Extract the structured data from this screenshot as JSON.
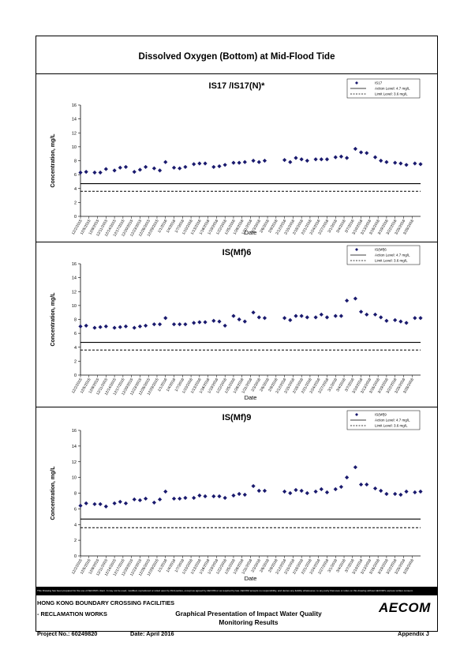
{
  "main_title": "Dissolved Oxygen (Bottom) at Mid-Flood Tide",
  "legend": {
    "action": "Action Level: 4.7 mg/L",
    "limit": "Limit Level: 3.6 mg/L"
  },
  "footer": {
    "disclaimer": "This Drawing has been prepared for the use of AECOM's client. It may not be used, modified, reproduced or relied upon by third parties, except as agreed by AECOM or as required by law. AECOM accepts no responsibility, and denies any liability whatsoever, to any party that uses or relies on this drawing without AECOM's express written consent.",
    "project_line1": "HONG KONG BOUNDARY CROSSING FACILITIES",
    "project_line2": "- RECLAMATION WORKS",
    "title_line1": "Graphical Presentation of Impact Water Quality",
    "title_line2": "Monitoring Results",
    "project_no": "Project No.: 60249820",
    "date": "Date: April 2016",
    "appendix": "Appendix J",
    "logo": "AECOM"
  },
  "colors": {
    "marker": "#1a1a6e",
    "line": "#000000"
  },
  "chart_data": [
    {
      "type": "scatter",
      "title": "IS17 /IS17(N)*",
      "series_name": "IS17",
      "xlabel": "Date",
      "ylabel": "Concentration, mg/L",
      "ylim": [
        0,
        16
      ],
      "yticks": [
        0,
        2,
        4,
        6,
        8,
        10,
        12,
        14,
        16
      ],
      "xlim": [
        "12/2/2015",
        "3/31/2016"
      ],
      "xticks": [
        "12/2/2015",
        "12/5/2015",
        "12/8/2015",
        "12/11/2015",
        "12/14/2015",
        "12/17/2015",
        "12/20/2015",
        "12/23/2015",
        "12/26/2015",
        "12/29/2015",
        "1/1/2016",
        "1/4/2016",
        "1/7/2016",
        "1/10/2016",
        "1/13/2016",
        "1/16/2016",
        "1/19/2016",
        "1/22/2016",
        "1/25/2016",
        "1/28/2016",
        "1/31/2016",
        "2/3/2016",
        "2/6/2016",
        "2/9/2016",
        "2/12/2016",
        "2/15/2016",
        "2/18/2016",
        "2/21/2016",
        "2/24/2016",
        "2/27/2016",
        "3/1/2016",
        "3/4/2016",
        "3/7/2016",
        "3/10/2016",
        "3/13/2016",
        "3/16/2016",
        "3/19/2016",
        "3/22/2016",
        "3/25/2016",
        "3/28/2016"
      ],
      "legend": "top-right",
      "action_level": 4.7,
      "limit_level": 3.6,
      "points": [
        [
          "12/2/2015",
          6.3
        ],
        [
          "12/4/2015",
          6.4
        ],
        [
          "12/7/2015",
          6.3
        ],
        [
          "12/9/2015",
          6.3
        ],
        [
          "12/11/2015",
          6.8
        ],
        [
          "12/14/2015",
          6.6
        ],
        [
          "12/16/2015",
          7.0
        ],
        [
          "12/18/2015",
          7.1
        ],
        [
          "12/21/2015",
          6.4
        ],
        [
          "12/23/2015",
          6.7
        ],
        [
          "12/25/2015",
          7.1
        ],
        [
          "12/28/2015",
          6.9
        ],
        [
          "12/30/2015",
          6.6
        ],
        [
          "1/1/2016",
          7.8
        ],
        [
          "1/4/2016",
          7.0
        ],
        [
          "1/6/2016",
          6.9
        ],
        [
          "1/8/2016",
          7.1
        ],
        [
          "1/11/2016",
          7.5
        ],
        [
          "1/13/2016",
          7.6
        ],
        [
          "1/15/2016",
          7.6
        ],
        [
          "1/18/2016",
          7.1
        ],
        [
          "1/20/2016",
          7.2
        ],
        [
          "1/22/2016",
          7.4
        ],
        [
          "1/25/2016",
          7.7
        ],
        [
          "1/27/2016",
          7.7
        ],
        [
          "1/29/2016",
          7.8
        ],
        [
          "2/1/2016",
          8.0
        ],
        [
          "2/3/2016",
          7.8
        ],
        [
          "2/5/2016",
          8.0
        ],
        [
          "2/12/2016",
          8.1
        ],
        [
          "2/14/2016",
          7.8
        ],
        [
          "2/16/2016",
          8.4
        ],
        [
          "2/18/2016",
          8.2
        ],
        [
          "2/20/2016",
          8.0
        ],
        [
          "2/23/2016",
          8.2
        ],
        [
          "2/25/2016",
          8.2
        ],
        [
          "2/27/2016",
          8.2
        ],
        [
          "3/1/2016",
          8.5
        ],
        [
          "3/3/2016",
          8.6
        ],
        [
          "3/5/2016",
          8.4
        ],
        [
          "3/8/2016",
          9.7
        ],
        [
          "3/10/2016",
          9.2
        ],
        [
          "3/12/2016",
          9.1
        ],
        [
          "3/15/2016",
          8.5
        ],
        [
          "3/17/2016",
          8.0
        ],
        [
          "3/19/2016",
          7.8
        ],
        [
          "3/22/2016",
          7.7
        ],
        [
          "3/24/2016",
          7.6
        ],
        [
          "3/26/2016",
          7.4
        ],
        [
          "3/29/2016",
          7.6
        ],
        [
          "3/31/2016",
          7.5
        ]
      ]
    },
    {
      "type": "scatter",
      "title": "IS(Mf)6",
      "series_name": "IS(Mf)6",
      "xlabel": "Date",
      "ylabel": "Concentration, mg/L",
      "ylim": [
        0,
        16
      ],
      "yticks": [
        0,
        2,
        4,
        6,
        8,
        10,
        12,
        14,
        16
      ],
      "xlim": [
        "12/2/2015",
        "3/31/2016"
      ],
      "xticks": [
        "12/2/2015",
        "12/5/2015",
        "12/8/2015",
        "12/11/2015",
        "12/14/2015",
        "12/17/2015",
        "12/20/2015",
        "12/23/2015",
        "12/26/2015",
        "12/29/2015",
        "1/1/2016",
        "1/4/2016",
        "1/7/2016",
        "1/10/2016",
        "1/13/2016",
        "1/16/2016",
        "1/19/2016",
        "1/22/2016",
        "1/25/2016",
        "1/28/2016",
        "1/31/2016",
        "2/3/2016",
        "2/6/2016",
        "2/9/2016",
        "2/12/2016",
        "2/15/2016",
        "2/18/2016",
        "2/21/2016",
        "2/24/2016",
        "2/27/2016",
        "3/1/2016",
        "3/4/2016",
        "3/7/2016",
        "3/10/2016",
        "3/13/2016",
        "3/16/2016",
        "3/19/2016",
        "3/22/2016",
        "3/25/2016",
        "3/28/2016"
      ],
      "legend": "top-right",
      "action_level": 4.7,
      "limit_level": 3.6,
      "points": [
        [
          "12/2/2015",
          7.0
        ],
        [
          "12/4/2015",
          7.1
        ],
        [
          "12/7/2015",
          6.8
        ],
        [
          "12/9/2015",
          6.9
        ],
        [
          "12/11/2015",
          7.0
        ],
        [
          "12/14/2015",
          6.8
        ],
        [
          "12/16/2015",
          6.9
        ],
        [
          "12/18/2015",
          7.0
        ],
        [
          "12/21/2015",
          6.8
        ],
        [
          "12/23/2015",
          7.0
        ],
        [
          "12/25/2015",
          7.1
        ],
        [
          "12/28/2015",
          7.3
        ],
        [
          "12/30/2015",
          7.3
        ],
        [
          "1/1/2016",
          8.2
        ],
        [
          "1/4/2016",
          7.3
        ],
        [
          "1/6/2016",
          7.3
        ],
        [
          "1/8/2016",
          7.3
        ],
        [
          "1/11/2016",
          7.5
        ],
        [
          "1/13/2016",
          7.6
        ],
        [
          "1/15/2016",
          7.6
        ],
        [
          "1/18/2016",
          7.8
        ],
        [
          "1/20/2016",
          7.7
        ],
        [
          "1/22/2016",
          7.1
        ],
        [
          "1/25/2016",
          8.5
        ],
        [
          "1/27/2016",
          8.0
        ],
        [
          "1/29/2016",
          7.7
        ],
        [
          "2/1/2016",
          9.0
        ],
        [
          "2/3/2016",
          8.3
        ],
        [
          "2/5/2016",
          8.2
        ],
        [
          "2/12/2016",
          8.2
        ],
        [
          "2/14/2016",
          7.9
        ],
        [
          "2/16/2016",
          8.5
        ],
        [
          "2/18/2016",
          8.5
        ],
        [
          "2/20/2016",
          8.3
        ],
        [
          "2/23/2016",
          8.3
        ],
        [
          "2/25/2016",
          8.7
        ],
        [
          "2/27/2016",
          8.3
        ],
        [
          "3/1/2016",
          8.5
        ],
        [
          "3/3/2016",
          8.5
        ],
        [
          "3/5/2016",
          10.7
        ],
        [
          "3/8/2016",
          11.0
        ],
        [
          "3/10/2016",
          9.1
        ],
        [
          "3/12/2016",
          8.7
        ],
        [
          "3/15/2016",
          8.7
        ],
        [
          "3/17/2016",
          8.3
        ],
        [
          "3/19/2016",
          7.8
        ],
        [
          "3/22/2016",
          7.9
        ],
        [
          "3/24/2016",
          7.7
        ],
        [
          "3/26/2016",
          7.5
        ],
        [
          "3/29/2016",
          8.2
        ],
        [
          "3/31/2016",
          8.2
        ]
      ]
    },
    {
      "type": "scatter",
      "title": "IS(Mf)9",
      "series_name": "IS(Mf)9",
      "xlabel": "Date",
      "ylabel": "Concentration, mg/L",
      "ylim": [
        0,
        16
      ],
      "yticks": [
        0,
        2,
        4,
        6,
        8,
        10,
        12,
        14,
        16
      ],
      "xlim": [
        "12/2/2015",
        "3/31/2016"
      ],
      "xticks": [
        "12/2/2015",
        "12/5/2015",
        "12/8/2015",
        "12/11/2015",
        "12/14/2015",
        "12/17/2015",
        "12/20/2015",
        "12/23/2015",
        "12/26/2015",
        "12/29/2015",
        "1/1/2016",
        "1/4/2016",
        "1/7/2016",
        "1/10/2016",
        "1/13/2016",
        "1/16/2016",
        "1/19/2016",
        "1/22/2016",
        "1/25/2016",
        "1/28/2016",
        "1/31/2016",
        "2/3/2016",
        "2/6/2016",
        "2/9/2016",
        "2/12/2016",
        "2/15/2016",
        "2/18/2016",
        "2/21/2016",
        "2/24/2016",
        "2/27/2016",
        "3/1/2016",
        "3/4/2016",
        "3/7/2016",
        "3/10/2016",
        "3/13/2016",
        "3/16/2016",
        "3/19/2016",
        "3/22/2016",
        "3/25/2016",
        "3/28/2016"
      ],
      "legend": "top-right",
      "action_level": 4.7,
      "limit_level": 3.6,
      "points": [
        [
          "12/2/2015",
          6.4
        ],
        [
          "12/4/2015",
          6.7
        ],
        [
          "12/7/2015",
          6.6
        ],
        [
          "12/9/2015",
          6.6
        ],
        [
          "12/11/2015",
          6.3
        ],
        [
          "12/14/2015",
          6.7
        ],
        [
          "12/16/2015",
          6.9
        ],
        [
          "12/18/2015",
          6.7
        ],
        [
          "12/21/2015",
          7.2
        ],
        [
          "12/23/2015",
          7.1
        ],
        [
          "12/25/2015",
          7.3
        ],
        [
          "12/28/2015",
          6.8
        ],
        [
          "12/30/2015",
          7.2
        ],
        [
          "1/1/2016",
          8.2
        ],
        [
          "1/4/2016",
          7.3
        ],
        [
          "1/6/2016",
          7.3
        ],
        [
          "1/8/2016",
          7.4
        ],
        [
          "1/11/2016",
          7.4
        ],
        [
          "1/13/2016",
          7.7
        ],
        [
          "1/15/2016",
          7.6
        ],
        [
          "1/18/2016",
          7.6
        ],
        [
          "1/20/2016",
          7.6
        ],
        [
          "1/22/2016",
          7.4
        ],
        [
          "1/25/2016",
          7.7
        ],
        [
          "1/27/2016",
          7.9
        ],
        [
          "1/29/2016",
          7.8
        ],
        [
          "2/1/2016",
          8.9
        ],
        [
          "2/3/2016",
          8.3
        ],
        [
          "2/5/2016",
          8.3
        ],
        [
          "2/12/2016",
          8.2
        ],
        [
          "2/14/2016",
          8.0
        ],
        [
          "2/16/2016",
          8.4
        ],
        [
          "2/18/2016",
          8.3
        ],
        [
          "2/20/2016",
          8.0
        ],
        [
          "2/23/2016",
          8.2
        ],
        [
          "2/25/2016",
          8.5
        ],
        [
          "2/27/2016",
          8.1
        ],
        [
          "3/1/2016",
          8.5
        ],
        [
          "3/3/2016",
          8.8
        ],
        [
          "3/5/2016",
          10.0
        ],
        [
          "3/8/2016",
          11.3
        ],
        [
          "3/10/2016",
          9.1
        ],
        [
          "3/12/2016",
          9.1
        ],
        [
          "3/15/2016",
          8.6
        ],
        [
          "3/17/2016",
          8.3
        ],
        [
          "3/19/2016",
          7.9
        ],
        [
          "3/22/2016",
          7.9
        ],
        [
          "3/24/2016",
          7.8
        ],
        [
          "3/26/2016",
          8.2
        ],
        [
          "3/29/2016",
          8.1
        ],
        [
          "3/31/2016",
          8.2
        ]
      ]
    }
  ]
}
